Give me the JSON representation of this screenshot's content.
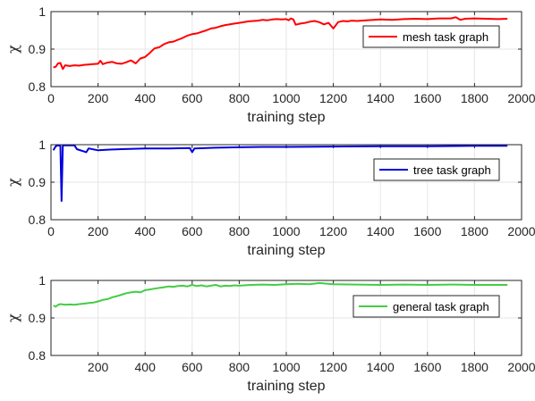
{
  "chart_data": [
    {
      "type": "line",
      "xlabel": "training step",
      "ylabel": "χ",
      "xlim": [
        0,
        2000
      ],
      "ylim": [
        0.8,
        1.0
      ],
      "xticks": [
        "0",
        "200",
        "400",
        "600",
        "800",
        "1000",
        "1200",
        "1400",
        "1600",
        "1800",
        "2000"
      ],
      "yticks": [
        "0.8",
        "0.9",
        "1"
      ],
      "grid": true,
      "legend_position": "top-right",
      "series": [
        {
          "name": "mesh task graph",
          "color": "#ff0000",
          "x": [
            10,
            20,
            30,
            40,
            50,
            60,
            70,
            80,
            100,
            120,
            140,
            160,
            180,
            200,
            210,
            220,
            240,
            260,
            280,
            300,
            320,
            340,
            360,
            380,
            400,
            420,
            440,
            460,
            480,
            500,
            520,
            540,
            560,
            580,
            600,
            620,
            640,
            660,
            680,
            700,
            720,
            740,
            760,
            780,
            800,
            820,
            840,
            860,
            880,
            900,
            920,
            940,
            960,
            980,
            1000,
            1010,
            1020,
            1030,
            1040,
            1060,
            1080,
            1100,
            1120,
            1140,
            1160,
            1180,
            1200,
            1220,
            1240,
            1260,
            1280,
            1300,
            1340,
            1400,
            1450,
            1500,
            1550,
            1600,
            1650,
            1700,
            1720,
            1740,
            1760,
            1800,
            1850,
            1900,
            1940
          ],
          "values": [
            0.851,
            0.853,
            0.862,
            0.863,
            0.847,
            0.857,
            0.856,
            0.855,
            0.857,
            0.856,
            0.858,
            0.859,
            0.86,
            0.861,
            0.869,
            0.86,
            0.864,
            0.866,
            0.862,
            0.861,
            0.865,
            0.87,
            0.862,
            0.875,
            0.879,
            0.89,
            0.902,
            0.905,
            0.913,
            0.918,
            0.92,
            0.925,
            0.93,
            0.936,
            0.94,
            0.942,
            0.946,
            0.95,
            0.955,
            0.957,
            0.961,
            0.964,
            0.966,
            0.968,
            0.97,
            0.972,
            0.974,
            0.975,
            0.976,
            0.978,
            0.977,
            0.979,
            0.98,
            0.979,
            0.98,
            0.977,
            0.982,
            0.979,
            0.965,
            0.968,
            0.97,
            0.973,
            0.975,
            0.972,
            0.966,
            0.97,
            0.955,
            0.972,
            0.975,
            0.974,
            0.976,
            0.975,
            0.977,
            0.979,
            0.978,
            0.98,
            0.981,
            0.98,
            0.982,
            0.982,
            0.985,
            0.978,
            0.981,
            0.982,
            0.981,
            0.98,
            0.981
          ]
        }
      ]
    },
    {
      "type": "line",
      "xlabel": "training step",
      "ylabel": "χ",
      "xlim": [
        0,
        2000
      ],
      "ylim": [
        0.8,
        1.0
      ],
      "xticks": [
        "0",
        "200",
        "400",
        "600",
        "800",
        "1000",
        "1200",
        "1400",
        "1600",
        "1800",
        "2000"
      ],
      "yticks": [
        "0.8",
        "0.9",
        "1"
      ],
      "grid": true,
      "legend_position": "right",
      "series": [
        {
          "name": "tree task graph",
          "color": "#0000dd",
          "x": [
            10,
            20,
            30,
            40,
            45,
            50,
            55,
            60,
            80,
            100,
            110,
            140,
            150,
            160,
            200,
            250,
            300,
            400,
            500,
            590,
            600,
            610,
            700,
            800,
            900,
            1000,
            1200,
            1400,
            1600,
            1800,
            1940
          ],
          "values": [
            0.985,
            0.996,
            0.998,
            0.997,
            0.85,
            0.998,
            0.998,
            0.998,
            0.998,
            0.998,
            0.988,
            0.982,
            0.98,
            0.99,
            0.985,
            0.987,
            0.988,
            0.99,
            0.99,
            0.991,
            0.98,
            0.99,
            0.992,
            0.993,
            0.994,
            0.994,
            0.995,
            0.996,
            0.996,
            0.997,
            0.997
          ]
        }
      ]
    },
    {
      "type": "line",
      "xlabel": "training step",
      "ylabel": "χ",
      "xlim": [
        0,
        2000
      ],
      "ylim": [
        0.8,
        1.0
      ],
      "xticks": [
        "200",
        "400",
        "600",
        "800",
        "1000",
        "1200",
        "1400",
        "1600",
        "1800",
        "2000"
      ],
      "yticks": [
        "0.8",
        "0.9",
        "1"
      ],
      "grid": true,
      "legend_position": "right",
      "series": [
        {
          "name": "general task graph",
          "color": "#44cc44",
          "x": [
            10,
            20,
            30,
            40,
            60,
            80,
            100,
            120,
            140,
            160,
            180,
            200,
            220,
            240,
            260,
            280,
            300,
            320,
            340,
            360,
            380,
            400,
            420,
            440,
            460,
            480,
            500,
            520,
            540,
            560,
            580,
            600,
            620,
            640,
            660,
            680,
            700,
            720,
            740,
            760,
            780,
            800,
            850,
            900,
            950,
            1000,
            1050,
            1100,
            1140,
            1160,
            1200,
            1300,
            1400,
            1500,
            1600,
            1700,
            1800,
            1900,
            1940
          ],
          "values": [
            0.933,
            0.93,
            0.935,
            0.937,
            0.935,
            0.936,
            0.935,
            0.937,
            0.938,
            0.94,
            0.941,
            0.944,
            0.948,
            0.95,
            0.955,
            0.958,
            0.962,
            0.966,
            0.968,
            0.97,
            0.968,
            0.974,
            0.976,
            0.978,
            0.98,
            0.982,
            0.984,
            0.983,
            0.985,
            0.986,
            0.984,
            0.988,
            0.985,
            0.987,
            0.984,
            0.986,
            0.988,
            0.984,
            0.986,
            0.985,
            0.987,
            0.986,
            0.988,
            0.989,
            0.988,
            0.99,
            0.991,
            0.99,
            0.993,
            0.992,
            0.99,
            0.989,
            0.988,
            0.989,
            0.988,
            0.989,
            0.988,
            0.988,
            0.988
          ]
        }
      ]
    }
  ]
}
